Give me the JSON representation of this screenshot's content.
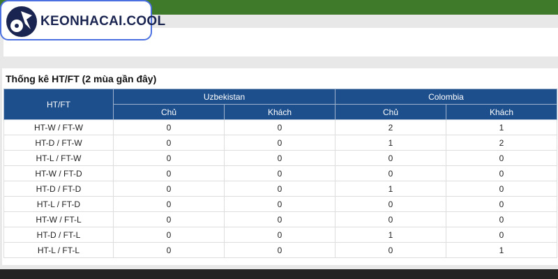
{
  "logo": {
    "text": "KEONHACAI.COOL"
  },
  "section": {
    "title": "Thống kê HT/FT (2 mùa gần đây)"
  },
  "table": {
    "corner": "HT/FT",
    "teams": [
      "Uzbekistan",
      "Colombia"
    ],
    "subheaders": [
      "Chủ",
      "Khách",
      "Chủ",
      "Khách"
    ],
    "rows": [
      [
        "HT-W / FT-W",
        0,
        0,
        2,
        1
      ],
      [
        "HT-D / FT-W",
        0,
        0,
        1,
        2
      ],
      [
        "HT-L / FT-W",
        0,
        0,
        0,
        0
      ],
      [
        "HT-W / FT-D",
        0,
        0,
        0,
        0
      ],
      [
        "HT-D / FT-D",
        0,
        0,
        1,
        0
      ],
      [
        "HT-L / FT-D",
        0,
        0,
        0,
        0
      ],
      [
        "HT-W / FT-L",
        0,
        0,
        0,
        0
      ],
      [
        "HT-D / FT-L",
        0,
        0,
        1,
        0
      ],
      [
        "HT-L / FT-L",
        0,
        0,
        0,
        1
      ]
    ]
  }
}
